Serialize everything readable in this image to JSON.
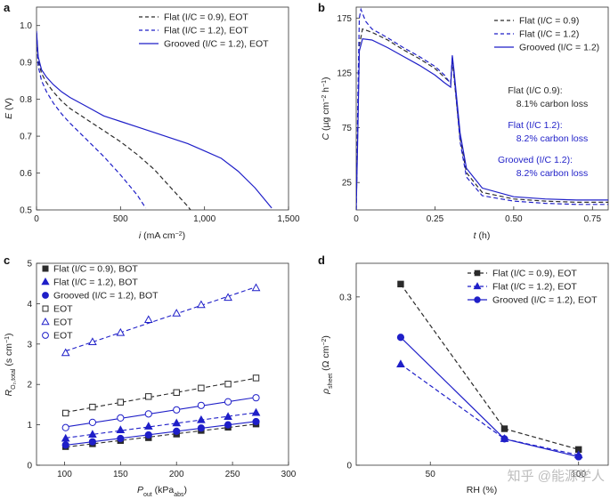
{
  "colors": {
    "black": "#2b2b2b",
    "blue": "#1f1fc8",
    "watermark": "#bdbdbd"
  },
  "chart_data": [
    {
      "panel": "a",
      "type": "line",
      "xlabel": "i (mA cm⁻²)",
      "ylabel": "E (V)",
      "xlim": [
        0,
        1500
      ],
      "ylim": [
        0.5,
        1.05
      ],
      "xticks": [
        0,
        500,
        1000,
        1500
      ],
      "xtick_labels": [
        "0",
        "500",
        "1,000",
        "1,500"
      ],
      "yticks": [
        0.5,
        0.6,
        0.7,
        0.8,
        0.9,
        1.0
      ],
      "ytick_labels": [
        "0.5",
        "0.6",
        "0.7",
        "0.8",
        "0.9",
        "1.0"
      ],
      "legend_position": "top-right",
      "series": [
        {
          "name": "Flat (I/C = 0.9), EOT",
          "color": "black",
          "style": "dashed",
          "x": [
            0,
            10,
            30,
            60,
            100,
            150,
            200,
            300,
            400,
            500,
            600,
            700,
            800,
            900,
            950
          ],
          "y": [
            0.98,
            0.905,
            0.87,
            0.845,
            0.82,
            0.795,
            0.775,
            0.745,
            0.715,
            0.685,
            0.65,
            0.61,
            0.56,
            0.51,
            0.48
          ]
        },
        {
          "name": "Flat (I/C = 1.2), EOT",
          "color": "blue",
          "style": "dashed",
          "x": [
            0,
            10,
            30,
            60,
            100,
            150,
            200,
            300,
            400,
            500,
            600,
            650
          ],
          "y": [
            0.98,
            0.89,
            0.85,
            0.82,
            0.79,
            0.76,
            0.735,
            0.69,
            0.645,
            0.595,
            0.54,
            0.505
          ]
        },
        {
          "name": "Grooved (I/C = 1.2), EOT",
          "color": "blue",
          "style": "solid",
          "x": [
            0,
            10,
            30,
            60,
            100,
            150,
            200,
            300,
            400,
            500,
            600,
            700,
            800,
            900,
            1000,
            1100,
            1200,
            1300,
            1400
          ],
          "y": [
            0.985,
            0.915,
            0.88,
            0.86,
            0.84,
            0.82,
            0.805,
            0.78,
            0.755,
            0.74,
            0.725,
            0.71,
            0.695,
            0.68,
            0.66,
            0.64,
            0.605,
            0.56,
            0.505
          ]
        }
      ]
    },
    {
      "panel": "b",
      "type": "line",
      "xlabel": "t (h)",
      "ylabel": "C (µg cm⁻² h⁻¹)",
      "xlim": [
        0,
        0.8
      ],
      "ylim": [
        0,
        185
      ],
      "xticks": [
        0,
        0.25,
        0.5,
        0.75
      ],
      "xtick_labels": [
        "0",
        "0.25",
        "0.50",
        "0.75"
      ],
      "yticks": [
        25,
        75,
        125,
        175
      ],
      "ytick_labels": [
        "25",
        "75",
        "125",
        "175"
      ],
      "legend_position": "top-right",
      "series": [
        {
          "name": "Flat (I/C = 0.9)",
          "color": "black",
          "style": "dashed",
          "x": [
            0,
            0.005,
            0.01,
            0.02,
            0.05,
            0.1,
            0.15,
            0.2,
            0.25,
            0.28,
            0.3,
            0.305,
            0.31,
            0.33,
            0.35,
            0.4,
            0.5,
            0.6,
            0.7,
            0.8
          ],
          "y": [
            0,
            80,
            150,
            165,
            162,
            155,
            146,
            138,
            129,
            121,
            116,
            136,
            122,
            65,
            34,
            16,
            10,
            8,
            7,
            7
          ]
        },
        {
          "name": "Flat (I/C = 1.2)",
          "color": "blue",
          "style": "dashed",
          "x": [
            0,
            0.005,
            0.01,
            0.015,
            0.03,
            0.05,
            0.1,
            0.15,
            0.2,
            0.25,
            0.28,
            0.3,
            0.305,
            0.31,
            0.33,
            0.35,
            0.4,
            0.5,
            0.6,
            0.7,
            0.8
          ],
          "y": [
            0,
            100,
            175,
            183,
            172,
            165,
            157,
            148,
            140,
            131,
            123,
            115,
            140,
            125,
            62,
            30,
            13,
            8,
            6,
            5,
            5
          ]
        },
        {
          "name": "Grooved (I/C = 1.2)",
          "color": "blue",
          "style": "solid",
          "x": [
            0,
            0.005,
            0.01,
            0.02,
            0.05,
            0.1,
            0.15,
            0.2,
            0.25,
            0.28,
            0.3,
            0.305,
            0.31,
            0.33,
            0.35,
            0.4,
            0.5,
            0.6,
            0.7,
            0.8
          ],
          "y": [
            0,
            70,
            145,
            156,
            155,
            148,
            140,
            132,
            123,
            116,
            112,
            141,
            128,
            70,
            38,
            20,
            12,
            10,
            9,
            9
          ]
        }
      ],
      "annotations": [
        {
          "label": "Flat (I/C 0.9):",
          "value": "8.1% carbon loss",
          "color": "black"
        },
        {
          "label": "Flat (I/C 1.2):",
          "value": "8.2% carbon loss",
          "color": "blue"
        },
        {
          "label": "Grooved (I/C 1.2):",
          "value": "8.2% carbon loss",
          "color": "blue"
        }
      ]
    },
    {
      "panel": "c",
      "type": "scatter",
      "xlabel": "P_out (kPa_abs)",
      "ylabel": "R_O2,total (s cm⁻¹)",
      "xlim": [
        75,
        300
      ],
      "ylim": [
        0,
        5
      ],
      "xticks": [
        100,
        150,
        200,
        250,
        300
      ],
      "xtick_labels": [
        "100",
        "150",
        "200",
        "250",
        "300"
      ],
      "yticks": [
        0,
        1,
        2,
        3,
        4,
        5
      ],
      "ytick_labels": [
        "0",
        "1",
        "2",
        "3",
        "4",
        "5"
      ],
      "legend_position": "top-left",
      "x": [
        101,
        125,
        150,
        175,
        200,
        222,
        246,
        271
      ],
      "series": [
        {
          "name": "Flat (I/C = 0.9), BOT",
          "marker": "square-filled",
          "color": "black",
          "line": "dashed",
          "values": [
            0.46,
            0.53,
            0.61,
            0.68,
            0.77,
            0.86,
            0.94,
            1.02
          ]
        },
        {
          "name": "Flat (I/C = 1.2), BOT",
          "marker": "triangle-filled",
          "color": "blue",
          "line": "dashed",
          "values": [
            0.66,
            0.76,
            0.87,
            0.96,
            1.04,
            1.12,
            1.2,
            1.3
          ]
        },
        {
          "name": "Grooved (I/C = 1.2), BOT",
          "marker": "circle-filled",
          "color": "blue",
          "line": "solid",
          "values": [
            0.5,
            0.58,
            0.66,
            0.75,
            0.84,
            0.92,
            1.0,
            1.08
          ]
        },
        {
          "name": "EOT",
          "marker": "square-open",
          "color": "black",
          "line": "dashed",
          "values": [
            1.29,
            1.44,
            1.56,
            1.7,
            1.8,
            1.91,
            2.01,
            2.16
          ]
        },
        {
          "name": "EOT",
          "marker": "triangle-open",
          "color": "blue",
          "line": "dashed",
          "values": [
            2.78,
            3.05,
            3.28,
            3.6,
            3.76,
            3.97,
            4.15,
            4.39
          ]
        },
        {
          "name": "EOT",
          "marker": "circle-open",
          "color": "blue",
          "line": "solid",
          "values": [
            0.93,
            1.06,
            1.17,
            1.27,
            1.37,
            1.48,
            1.57,
            1.67
          ]
        }
      ]
    },
    {
      "panel": "d",
      "type": "line",
      "xlabel": "RH (%)",
      "ylabel": "ρ_sheet (Ω cm⁻²)",
      "xlim": [
        25,
        110
      ],
      "ylim": [
        0,
        0.36
      ],
      "xticks": [
        50,
        100
      ],
      "xtick_labels": [
        "50",
        "100"
      ],
      "yticks": [
        0,
        0.3
      ],
      "ytick_labels": [
        "0",
        "0.3"
      ],
      "legend_position": "top-right",
      "x": [
        40,
        75,
        100
      ],
      "series": [
        {
          "name": "Flat (I/C = 0.9), EOT",
          "marker": "square-filled",
          "color": "black",
          "line": "dashed",
          "values": [
            0.323,
            0.065,
            0.028
          ]
        },
        {
          "name": "Flat (I/C = 1.2), EOT",
          "marker": "triangle-filled",
          "color": "blue",
          "line": "dashed",
          "values": [
            0.18,
            0.047,
            0.018
          ]
        },
        {
          "name": "Grooved (I/C = 1.2), EOT",
          "marker": "circle-filled",
          "color": "blue",
          "line": "solid",
          "values": [
            0.228,
            0.047,
            0.015
          ]
        }
      ]
    }
  ],
  "watermark": "知乎 @能源学人"
}
